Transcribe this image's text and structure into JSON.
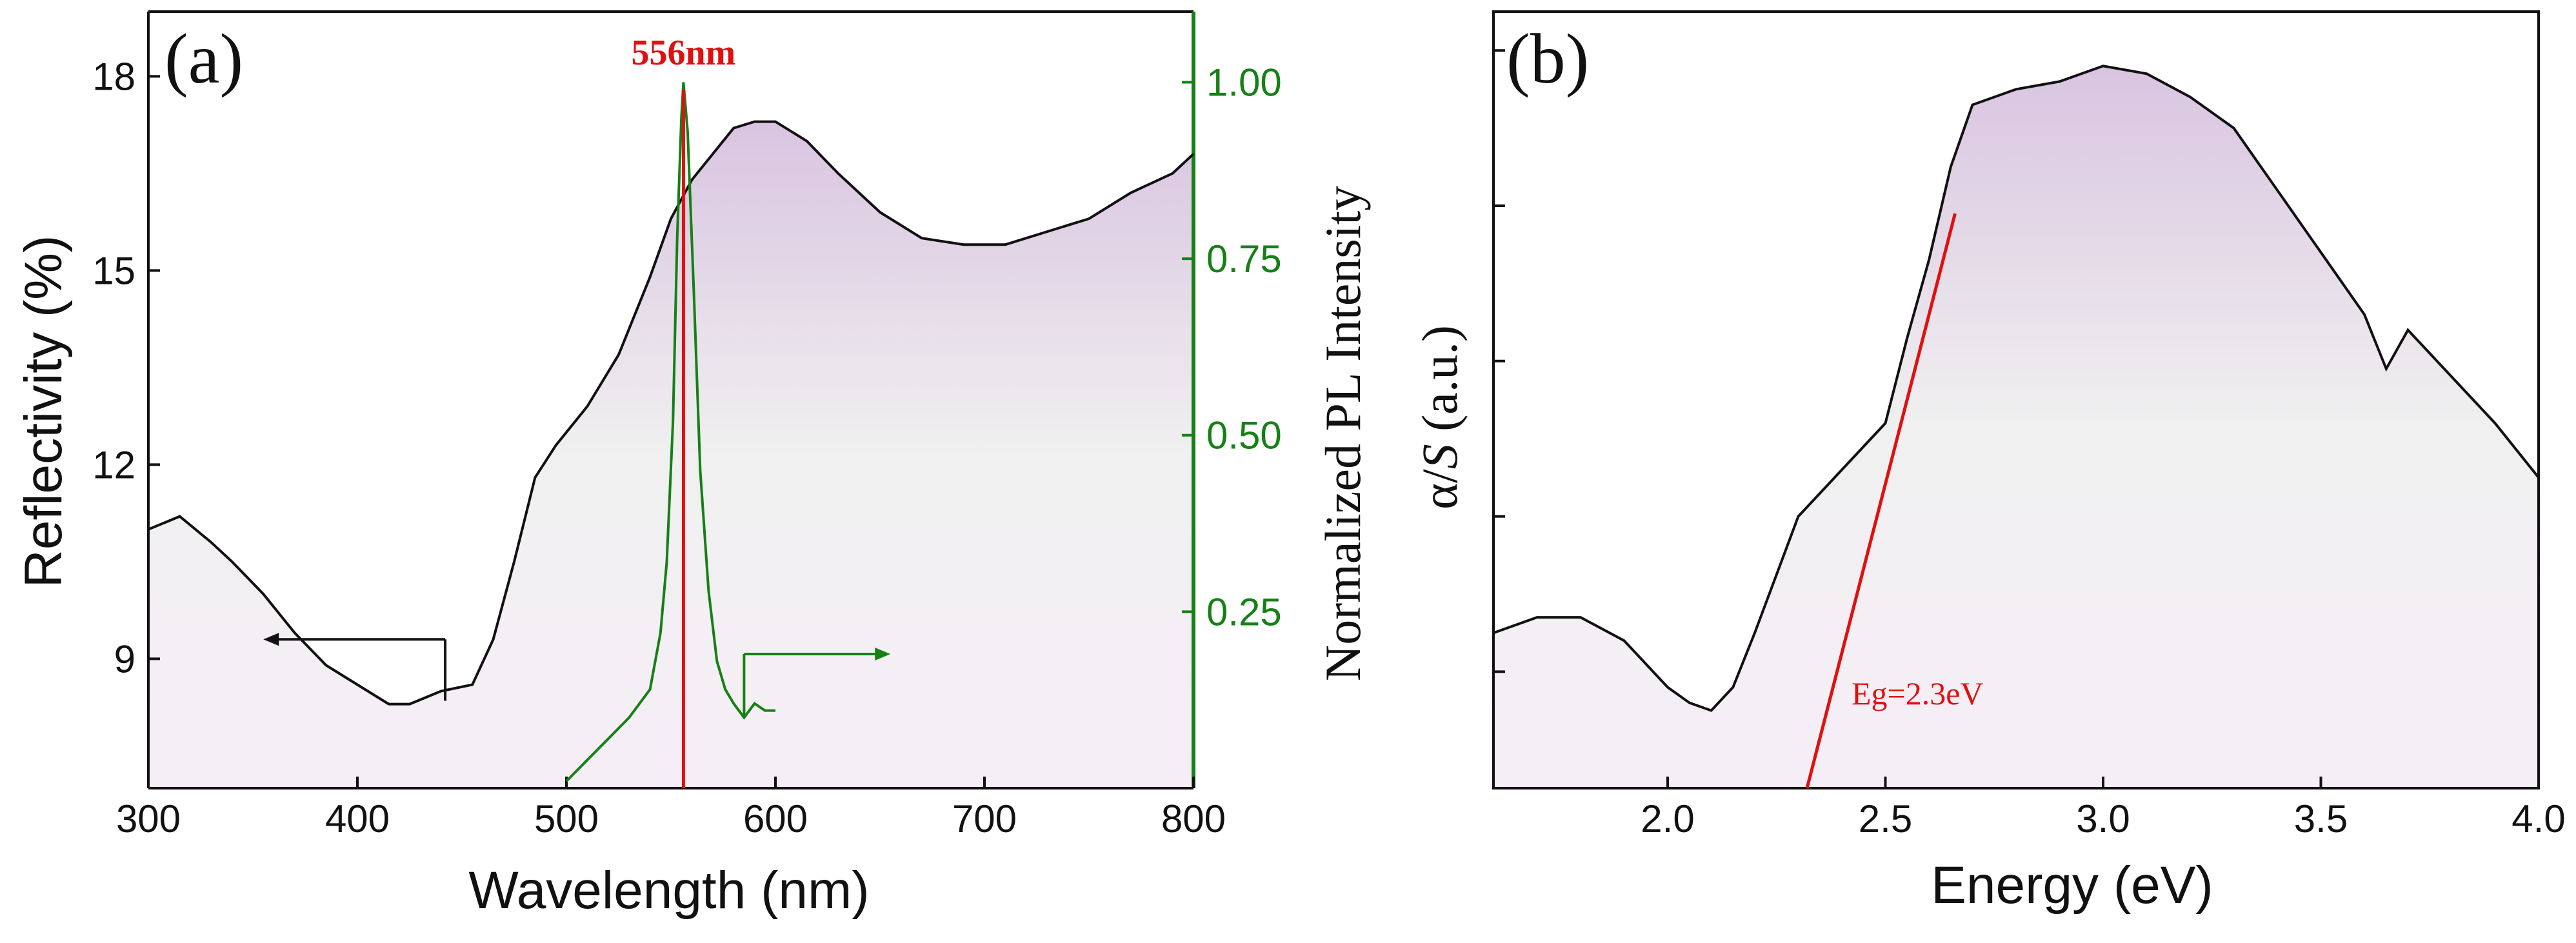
{
  "colors": {
    "axis": "#111111",
    "curve": "#111111",
    "pl": "#168016",
    "marker": "#e01010",
    "shade_top": "#d9c4e0",
    "shade_mid": "#f0f0f0",
    "shade_low": "#f6eef7"
  },
  "chart_data": [
    {
      "type": "line",
      "panel_label": "(a)",
      "xlabel": "Wavelength (nm)",
      "ylabel": "Reflectivity (%)",
      "y2label": "Normalized PL Intensity",
      "xlim": [
        300,
        800
      ],
      "ylim": [
        7,
        19
      ],
      "y2lim": [
        0,
        1.1
      ],
      "xticks": [
        300,
        400,
        500,
        600,
        700,
        800
      ],
      "yticks": [
        9,
        12,
        15,
        18
      ],
      "y2ticks": [
        0.25,
        0.5,
        0.75,
        1.0
      ],
      "xticklabels": [
        "300",
        "400",
        "500",
        "600",
        "700",
        "800"
      ],
      "yticklabels": [
        "9",
        "12",
        "15",
        "18"
      ],
      "y2ticklabels": [
        "0.25",
        "0.50",
        "0.75",
        "1.00"
      ],
      "peak_label": "556nm",
      "peak_x": 556,
      "series": [
        {
          "name": "Reflectivity",
          "axis": "left",
          "x": [
            300,
            315,
            330,
            340,
            355,
            370,
            385,
            400,
            415,
            425,
            440,
            455,
            465,
            475,
            485,
            495,
            510,
            525,
            540,
            550,
            560,
            570,
            580,
            590,
            600,
            615,
            630,
            650,
            670,
            690,
            710,
            730,
            750,
            770,
            790,
            800
          ],
          "y": [
            11.0,
            11.2,
            10.8,
            10.5,
            10.0,
            9.4,
            8.9,
            8.6,
            8.3,
            8.3,
            8.5,
            8.6,
            9.3,
            10.5,
            11.8,
            12.3,
            12.9,
            13.7,
            14.9,
            15.8,
            16.4,
            16.8,
            17.2,
            17.3,
            17.3,
            17.0,
            16.5,
            15.9,
            15.5,
            15.4,
            15.4,
            15.6,
            15.8,
            16.2,
            16.5,
            16.8
          ]
        },
        {
          "name": "PL",
          "axis": "right",
          "x": [
            500,
            510,
            520,
            530,
            540,
            545,
            548,
            551,
            553,
            555,
            556,
            558,
            561,
            564,
            568,
            572,
            576,
            580,
            585,
            590,
            595,
            600
          ],
          "y": [
            0.01,
            0.04,
            0.07,
            0.1,
            0.14,
            0.22,
            0.32,
            0.52,
            0.78,
            0.95,
            1.0,
            0.93,
            0.7,
            0.45,
            0.28,
            0.18,
            0.14,
            0.12,
            0.1,
            0.12,
            0.11,
            0.11
          ]
        }
      ],
      "annotations": [
        "left-pointing arrow marks reflectivity axis",
        "right-pointing arrow marks PL axis"
      ]
    },
    {
      "type": "line",
      "panel_label": "(b)",
      "xlabel": "Energy (eV)",
      "ylabel_parts": [
        "α/",
        "S",
        " (a.u.)"
      ],
      "xlim": [
        1.6,
        4.0
      ],
      "ylim": [
        0,
        100
      ],
      "xticks": [
        2.0,
        2.5,
        3.0,
        3.5,
        4.0
      ],
      "xticklabels": [
        "2.0",
        "2.5",
        "3.0",
        "3.5",
        "4.0"
      ],
      "yticks_unlabeled": [
        15,
        35,
        55,
        75,
        95
      ],
      "fit_label": "Eg=2.3eV",
      "fit_line": {
        "x": [
          2.32,
          2.66
        ],
        "y": [
          0,
          74
        ]
      },
      "series": [
        {
          "name": "alpha/S",
          "x": [
            1.6,
            1.7,
            1.8,
            1.9,
            2.0,
            2.05,
            2.1,
            2.15,
            2.2,
            2.3,
            2.4,
            2.5,
            2.55,
            2.6,
            2.65,
            2.7,
            2.8,
            2.9,
            3.0,
            3.1,
            3.2,
            3.3,
            3.4,
            3.5,
            3.6,
            3.65,
            3.7,
            3.8,
            3.9,
            4.0
          ],
          "y": [
            20,
            22,
            22,
            19,
            13,
            11,
            10,
            13,
            20,
            35,
            41,
            47,
            58,
            68,
            80,
            88,
            90,
            91,
            93,
            92,
            89,
            85,
            77,
            69,
            61,
            54,
            59,
            53,
            47,
            40
          ]
        }
      ]
    }
  ]
}
